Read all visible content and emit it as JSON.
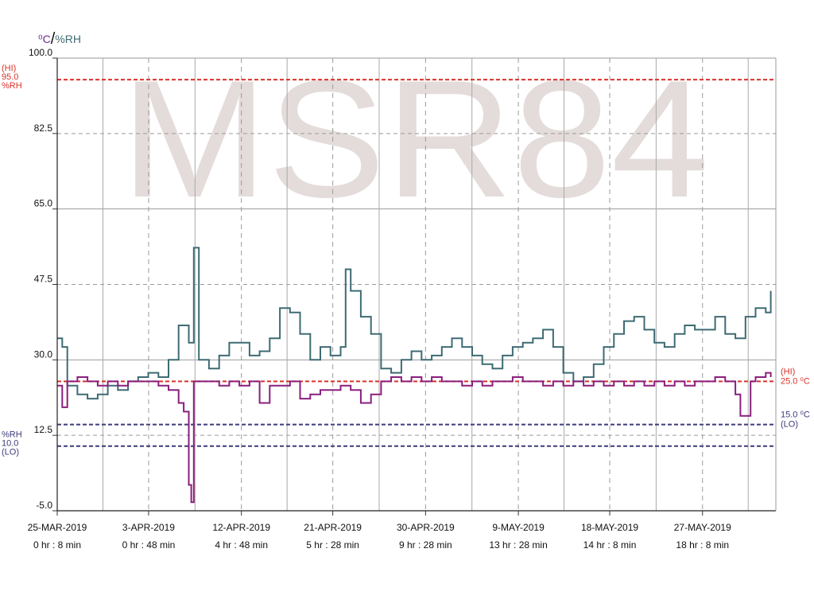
{
  "chart_data": {
    "type": "line",
    "watermark": "MSR84",
    "units": {
      "temp": "⁰C",
      "sep": "/",
      "rh": "%RH"
    },
    "ylim": [
      -5,
      100
    ],
    "yticks": [
      {
        "value": 100,
        "label": "100.0"
      },
      {
        "value": 82.5,
        "label": "82.5"
      },
      {
        "value": 65,
        "label": "65.0"
      },
      {
        "value": 47.5,
        "label": "47.5"
      },
      {
        "value": 30,
        "label": "30.0"
      },
      {
        "value": 12.5,
        "label": "12.5"
      },
      {
        "value": -5,
        "label": "-5.0"
      }
    ],
    "xlim": [
      "2019-03-25T00:08",
      "2019-06-04T00:00"
    ],
    "xticks": [
      {
        "x": "2019-03-25T00:08",
        "date": "25-MAR-2019",
        "time": "0 hr : 8 min"
      },
      {
        "x": "2019-04-03T00:48",
        "date": "3-APR-2019",
        "time": "0 hr : 48 min"
      },
      {
        "x": "2019-04-12T04:48",
        "date": "12-APR-2019",
        "time": "4 hr : 48 min"
      },
      {
        "x": "2019-04-21T05:28",
        "date": "21-APR-2019",
        "time": "5 hr : 28 min"
      },
      {
        "x": "2019-04-30T09:28",
        "date": "30-APR-2019",
        "time": "9 hr : 28 min"
      },
      {
        "x": "2019-05-09T13:28",
        "date": "9-MAY-2019",
        "time": "13 hr : 28 min"
      },
      {
        "x": "2019-05-18T14:08",
        "date": "18-MAY-2019",
        "time": "14 hr : 8 min"
      },
      {
        "x": "2019-05-27T18:08",
        "date": "27-MAY-2019",
        "time": "18 hr : 8 min"
      }
    ],
    "thresholds": [
      {
        "value": 95.0,
        "color": "#d9322a",
        "side": "left",
        "lines": [
          "(HI)",
          "95.0",
          "%RH"
        ]
      },
      {
        "value": 10.0,
        "color": "#3d3a7a",
        "side": "left",
        "lines": [
          "%RH",
          "10.0",
          "(LO)"
        ]
      },
      {
        "value": 25.0,
        "color": "#d9322a",
        "side": "right",
        "lines": [
          "(HI)",
          "25.0 ⁰C"
        ]
      },
      {
        "value": 15.0,
        "color": "#3d3a7a",
        "side": "right",
        "lines": [
          "15.0 ⁰C",
          "(LO)"
        ]
      }
    ],
    "series": [
      {
        "key": "humidity",
        "color": "#3e6b73",
        "points": [
          {
            "x": "2019-03-25T00:08",
            "y": 35
          },
          {
            "x": "2019-03-25T12:00",
            "y": 33
          },
          {
            "x": "2019-03-26T00:00",
            "y": 24
          },
          {
            "x": "2019-03-27T00:00",
            "y": 22
          },
          {
            "x": "2019-03-28T00:00",
            "y": 21
          },
          {
            "x": "2019-03-29T00:00",
            "y": 22
          },
          {
            "x": "2019-03-30T00:00",
            "y": 24
          },
          {
            "x": "2019-03-31T00:00",
            "y": 23
          },
          {
            "x": "2019-04-01T00:00",
            "y": 25
          },
          {
            "x": "2019-04-02T00:00",
            "y": 26
          },
          {
            "x": "2019-04-03T00:00",
            "y": 27
          },
          {
            "x": "2019-04-04T00:00",
            "y": 26
          },
          {
            "x": "2019-04-05T00:00",
            "y": 30
          },
          {
            "x": "2019-04-06T00:00",
            "y": 38
          },
          {
            "x": "2019-04-07T00:00",
            "y": 34
          },
          {
            "x": "2019-04-07T12:00",
            "y": 56
          },
          {
            "x": "2019-04-08T00:00",
            "y": 30
          },
          {
            "x": "2019-04-09T00:00",
            "y": 28
          },
          {
            "x": "2019-04-10T00:00",
            "y": 31
          },
          {
            "x": "2019-04-11T00:00",
            "y": 34
          },
          {
            "x": "2019-04-12T00:00",
            "y": 34
          },
          {
            "x": "2019-04-13T00:00",
            "y": 31
          },
          {
            "x": "2019-04-14T00:00",
            "y": 32
          },
          {
            "x": "2019-04-15T00:00",
            "y": 35
          },
          {
            "x": "2019-04-16T00:00",
            "y": 42
          },
          {
            "x": "2019-04-17T00:00",
            "y": 41
          },
          {
            "x": "2019-04-18T00:00",
            "y": 36
          },
          {
            "x": "2019-04-19T00:00",
            "y": 30
          },
          {
            "x": "2019-04-20T00:00",
            "y": 33
          },
          {
            "x": "2019-04-21T00:00",
            "y": 31
          },
          {
            "x": "2019-04-22T00:00",
            "y": 33
          },
          {
            "x": "2019-04-22T12:00",
            "y": 51
          },
          {
            "x": "2019-04-23T00:00",
            "y": 46
          },
          {
            "x": "2019-04-24T00:00",
            "y": 40
          },
          {
            "x": "2019-04-25T00:00",
            "y": 36
          },
          {
            "x": "2019-04-26T00:00",
            "y": 28
          },
          {
            "x": "2019-04-27T00:00",
            "y": 27
          },
          {
            "x": "2019-04-28T00:00",
            "y": 30
          },
          {
            "x": "2019-04-29T00:00",
            "y": 32
          },
          {
            "x": "2019-04-30T00:00",
            "y": 30
          },
          {
            "x": "2019-05-01T00:00",
            "y": 31
          },
          {
            "x": "2019-05-02T00:00",
            "y": 33
          },
          {
            "x": "2019-05-03T00:00",
            "y": 35
          },
          {
            "x": "2019-05-04T00:00",
            "y": 33
          },
          {
            "x": "2019-05-05T00:00",
            "y": 31
          },
          {
            "x": "2019-05-06T00:00",
            "y": 29
          },
          {
            "x": "2019-05-07T00:00",
            "y": 28
          },
          {
            "x": "2019-05-08T00:00",
            "y": 31
          },
          {
            "x": "2019-05-09T00:00",
            "y": 33
          },
          {
            "x": "2019-05-10T00:00",
            "y": 34
          },
          {
            "x": "2019-05-11T00:00",
            "y": 35
          },
          {
            "x": "2019-05-12T00:00",
            "y": 37
          },
          {
            "x": "2019-05-13T00:00",
            "y": 33
          },
          {
            "x": "2019-05-14T00:00",
            "y": 27
          },
          {
            "x": "2019-05-15T00:00",
            "y": 25
          },
          {
            "x": "2019-05-16T00:00",
            "y": 26
          },
          {
            "x": "2019-05-17T00:00",
            "y": 29
          },
          {
            "x": "2019-05-18T00:00",
            "y": 33
          },
          {
            "x": "2019-05-19T00:00",
            "y": 36
          },
          {
            "x": "2019-05-20T00:00",
            "y": 39
          },
          {
            "x": "2019-05-21T00:00",
            "y": 40
          },
          {
            "x": "2019-05-22T00:00",
            "y": 37
          },
          {
            "x": "2019-05-23T00:00",
            "y": 34
          },
          {
            "x": "2019-05-24T00:00",
            "y": 33
          },
          {
            "x": "2019-05-25T00:00",
            "y": 36
          },
          {
            "x": "2019-05-26T00:00",
            "y": 38
          },
          {
            "x": "2019-05-27T00:00",
            "y": 37
          },
          {
            "x": "2019-05-28T00:00",
            "y": 37
          },
          {
            "x": "2019-05-29T00:00",
            "y": 40
          },
          {
            "x": "2019-05-30T00:00",
            "y": 36
          },
          {
            "x": "2019-05-31T00:00",
            "y": 35
          },
          {
            "x": "2019-06-01T00:00",
            "y": 40
          },
          {
            "x": "2019-06-02T00:00",
            "y": 42
          },
          {
            "x": "2019-06-03T00:00",
            "y": 41
          },
          {
            "x": "2019-06-03T12:00",
            "y": 46
          }
        ]
      },
      {
        "key": "temperature",
        "color": "#8a1f7d",
        "points": [
          {
            "x": "2019-03-25T00:08",
            "y": 24
          },
          {
            "x": "2019-03-25T12:00",
            "y": 19
          },
          {
            "x": "2019-03-26T00:00",
            "y": 25
          },
          {
            "x": "2019-03-27T00:00",
            "y": 26
          },
          {
            "x": "2019-03-28T00:00",
            "y": 25
          },
          {
            "x": "2019-03-29T00:00",
            "y": 24
          },
          {
            "x": "2019-03-30T00:00",
            "y": 25
          },
          {
            "x": "2019-03-31T00:00",
            "y": 24
          },
          {
            "x": "2019-04-01T00:00",
            "y": 25
          },
          {
            "x": "2019-04-02T00:00",
            "y": 25
          },
          {
            "x": "2019-04-03T00:00",
            "y": 25
          },
          {
            "x": "2019-04-04T00:00",
            "y": 24
          },
          {
            "x": "2019-04-05T00:00",
            "y": 23
          },
          {
            "x": "2019-04-06T00:00",
            "y": 20
          },
          {
            "x": "2019-04-06T12:00",
            "y": 18
          },
          {
            "x": "2019-04-07T00:00",
            "y": 1
          },
          {
            "x": "2019-04-07T06:00",
            "y": -3
          },
          {
            "x": "2019-04-07T12:00",
            "y": 25
          },
          {
            "x": "2019-04-08T00:00",
            "y": 25
          },
          {
            "x": "2019-04-09T00:00",
            "y": 25
          },
          {
            "x": "2019-04-10T00:00",
            "y": 24
          },
          {
            "x": "2019-04-11T00:00",
            "y": 25
          },
          {
            "x": "2019-04-12T00:00",
            "y": 24
          },
          {
            "x": "2019-04-13T00:00",
            "y": 25
          },
          {
            "x": "2019-04-14T00:00",
            "y": 20
          },
          {
            "x": "2019-04-15T00:00",
            "y": 24
          },
          {
            "x": "2019-04-16T00:00",
            "y": 24
          },
          {
            "x": "2019-04-17T00:00",
            "y": 25
          },
          {
            "x": "2019-04-18T00:00",
            "y": 21
          },
          {
            "x": "2019-04-19T00:00",
            "y": 22
          },
          {
            "x": "2019-04-20T00:00",
            "y": 23
          },
          {
            "x": "2019-04-21T00:00",
            "y": 23
          },
          {
            "x": "2019-04-22T00:00",
            "y": 24
          },
          {
            "x": "2019-04-23T00:00",
            "y": 23
          },
          {
            "x": "2019-04-24T00:00",
            "y": 20
          },
          {
            "x": "2019-04-25T00:00",
            "y": 22
          },
          {
            "x": "2019-04-26T00:00",
            "y": 25
          },
          {
            "x": "2019-04-27T00:00",
            "y": 26
          },
          {
            "x": "2019-04-28T00:00",
            "y": 25
          },
          {
            "x": "2019-04-29T00:00",
            "y": 26
          },
          {
            "x": "2019-04-30T00:00",
            "y": 25
          },
          {
            "x": "2019-05-01T00:00",
            "y": 26
          },
          {
            "x": "2019-05-02T00:00",
            "y": 25
          },
          {
            "x": "2019-05-03T00:00",
            "y": 25
          },
          {
            "x": "2019-05-04T00:00",
            "y": 24
          },
          {
            "x": "2019-05-05T00:00",
            "y": 25
          },
          {
            "x": "2019-05-06T00:00",
            "y": 24
          },
          {
            "x": "2019-05-07T00:00",
            "y": 25
          },
          {
            "x": "2019-05-08T00:00",
            "y": 25
          },
          {
            "x": "2019-05-09T00:00",
            "y": 26
          },
          {
            "x": "2019-05-10T00:00",
            "y": 25
          },
          {
            "x": "2019-05-11T00:00",
            "y": 25
          },
          {
            "x": "2019-05-12T00:00",
            "y": 24
          },
          {
            "x": "2019-05-13T00:00",
            "y": 25
          },
          {
            "x": "2019-05-14T00:00",
            "y": 24
          },
          {
            "x": "2019-05-15T00:00",
            "y": 25
          },
          {
            "x": "2019-05-16T00:00",
            "y": 24
          },
          {
            "x": "2019-05-17T00:00",
            "y": 25
          },
          {
            "x": "2019-05-18T00:00",
            "y": 24
          },
          {
            "x": "2019-05-19T00:00",
            "y": 25
          },
          {
            "x": "2019-05-20T00:00",
            "y": 24
          },
          {
            "x": "2019-05-21T00:00",
            "y": 25
          },
          {
            "x": "2019-05-22T00:00",
            "y": 24
          },
          {
            "x": "2019-05-23T00:00",
            "y": 25
          },
          {
            "x": "2019-05-24T00:00",
            "y": 24
          },
          {
            "x": "2019-05-25T00:00",
            "y": 25
          },
          {
            "x": "2019-05-26T00:00",
            "y": 24
          },
          {
            "x": "2019-05-27T00:00",
            "y": 25
          },
          {
            "x": "2019-05-28T00:00",
            "y": 25
          },
          {
            "x": "2019-05-29T00:00",
            "y": 26
          },
          {
            "x": "2019-05-30T00:00",
            "y": 25
          },
          {
            "x": "2019-05-31T00:00",
            "y": 22
          },
          {
            "x": "2019-05-31T12:00",
            "y": 17
          },
          {
            "x": "2019-06-01T00:00",
            "y": 17
          },
          {
            "x": "2019-06-01T12:00",
            "y": 25
          },
          {
            "x": "2019-06-02T00:00",
            "y": 26
          },
          {
            "x": "2019-06-03T00:00",
            "y": 27
          },
          {
            "x": "2019-06-03T12:00",
            "y": 26
          }
        ]
      }
    ]
  }
}
